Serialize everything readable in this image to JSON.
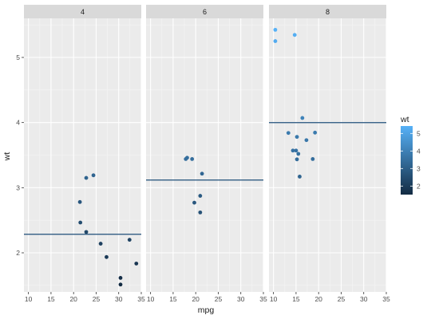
{
  "chart_data": {
    "type": "scatter",
    "xlabel": "mpg",
    "ylabel": "wt",
    "xlim": [
      9,
      35
    ],
    "ylim": [
      1.4,
      5.6
    ],
    "x_ticks": [
      10,
      15,
      20,
      25,
      30,
      35
    ],
    "y_ticks": [
      2,
      3,
      4,
      5
    ],
    "grid": true,
    "colorbar": {
      "title": "wt",
      "ticks": [
        2,
        3,
        4,
        5
      ],
      "range": [
        1.513,
        5.424
      ],
      "low_color": "#132B43",
      "high_color": "#56B1F7"
    },
    "hline_color": "#1F4E79",
    "facets": [
      {
        "label": "4",
        "hline": 2.285,
        "points": [
          {
            "x": 21.4,
            "y": 2.78
          },
          {
            "x": 21.5,
            "y": 2.465
          },
          {
            "x": 22.8,
            "y": 2.32
          },
          {
            "x": 22.8,
            "y": 3.15
          },
          {
            "x": 24.4,
            "y": 3.19
          },
          {
            "x": 26.0,
            "y": 2.14
          },
          {
            "x": 27.3,
            "y": 1.935
          },
          {
            "x": 30.4,
            "y": 1.615
          },
          {
            "x": 30.4,
            "y": 1.513
          },
          {
            "x": 32.4,
            "y": 2.2
          },
          {
            "x": 33.9,
            "y": 1.835
          }
        ]
      },
      {
        "label": "6",
        "hline": 3.117,
        "points": [
          {
            "x": 17.8,
            "y": 3.44
          },
          {
            "x": 18.1,
            "y": 3.46
          },
          {
            "x": 19.2,
            "y": 3.44
          },
          {
            "x": 19.7,
            "y": 2.77
          },
          {
            "x": 21.0,
            "y": 2.62
          },
          {
            "x": 21.0,
            "y": 2.875
          },
          {
            "x": 21.4,
            "y": 3.215
          }
        ]
      },
      {
        "label": "8",
        "hline": 3.999,
        "points": [
          {
            "x": 10.4,
            "y": 5.25
          },
          {
            "x": 10.4,
            "y": 5.424
          },
          {
            "x": 13.3,
            "y": 3.84
          },
          {
            "x": 14.3,
            "y": 3.57
          },
          {
            "x": 14.7,
            "y": 5.345
          },
          {
            "x": 15.0,
            "y": 3.57
          },
          {
            "x": 15.2,
            "y": 3.78
          },
          {
            "x": 15.2,
            "y": 3.435
          },
          {
            "x": 15.5,
            "y": 3.52
          },
          {
            "x": 15.8,
            "y": 3.17
          },
          {
            "x": 16.4,
            "y": 4.07
          },
          {
            "x": 17.3,
            "y": 3.73
          },
          {
            "x": 18.7,
            "y": 3.44
          },
          {
            "x": 19.2,
            "y": 3.845
          }
        ]
      }
    ]
  }
}
